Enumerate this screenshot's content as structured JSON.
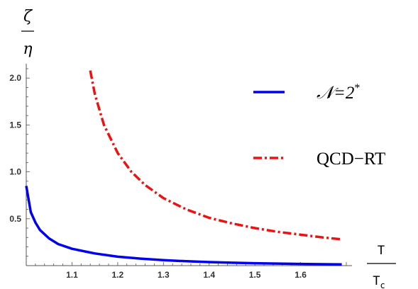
{
  "chart_data": {
    "type": "line",
    "ylabel": {
      "numerator": "ζ",
      "denominator": "η"
    },
    "xlabel": {
      "numerator": "T",
      "denominator": "T",
      "denominator_subscript": "c"
    },
    "xlim": [
      1.0,
      1.7
    ],
    "ylim": [
      0.0,
      2.1
    ],
    "x_ticks": [
      "1.1",
      "1.2",
      "1.3",
      "1.4",
      "1.5",
      "1.6"
    ],
    "y_ticks": [
      "0.5",
      "1.0",
      "1.5",
      "2.0"
    ],
    "legend_position": "right",
    "series": [
      {
        "name": "𝒩=2*",
        "color": "#0000ee",
        "style": "solid",
        "x": [
          1.0,
          1.01,
          1.02,
          1.03,
          1.05,
          1.07,
          1.1,
          1.15,
          1.2,
          1.25,
          1.3,
          1.35,
          1.4,
          1.45,
          1.5,
          1.55,
          1.6,
          1.65,
          1.69
        ],
        "y": [
          0.85,
          0.57,
          0.46,
          0.38,
          0.29,
          0.23,
          0.18,
          0.13,
          0.095,
          0.075,
          0.058,
          0.047,
          0.038,
          0.031,
          0.026,
          0.022,
          0.018,
          0.015,
          0.013
        ]
      },
      {
        "name": "QCD−RT",
        "color": "#ee1111",
        "style": "dashdot",
        "x": [
          1.14,
          1.15,
          1.17,
          1.2,
          1.23,
          1.26,
          1.3,
          1.35,
          1.4,
          1.45,
          1.5,
          1.55,
          1.6,
          1.65,
          1.69
        ],
        "y": [
          2.08,
          1.83,
          1.5,
          1.2,
          1.0,
          0.86,
          0.72,
          0.6,
          0.51,
          0.45,
          0.4,
          0.36,
          0.33,
          0.3,
          0.28
        ]
      }
    ],
    "legend": [
      {
        "label_main": "𝒩=2",
        "label_sup": "*",
        "style": "solid",
        "color": "#0000ee"
      },
      {
        "label_main": "QCD−RT",
        "label_sup": "",
        "style": "dashdot",
        "color": "#ee1111"
      }
    ]
  }
}
